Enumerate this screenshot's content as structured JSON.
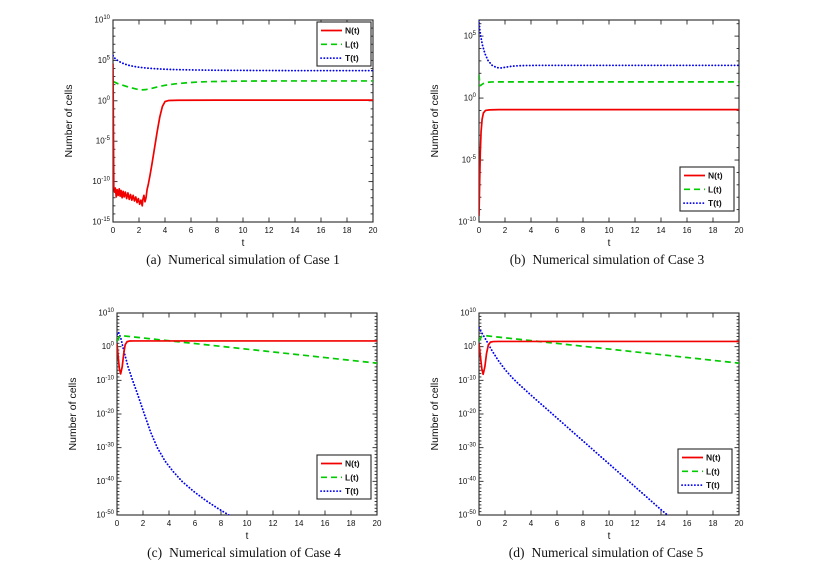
{
  "page": {
    "background": "#ffffff"
  },
  "colors": {
    "series_N": "#f20000",
    "series_L": "#00cc00",
    "series_T": "#0000f2",
    "axis": "#262626",
    "text": "#111111"
  },
  "chart_data": [
    {
      "id": "a",
      "type": "line",
      "caption_label": "(a)",
      "caption_text": "Numerical simulation of Case 1",
      "xlabel": "t",
      "ylabel": "Number of cells",
      "xlim": [
        0,
        20
      ],
      "xticks": [
        0,
        2,
        4,
        6,
        8,
        10,
        12,
        14,
        16,
        18,
        20
      ],
      "ylim_exp": [
        -15,
        10
      ],
      "yticks_exp": [
        10,
        5,
        0,
        -5,
        -10,
        -15
      ],
      "grid": false,
      "legend_pos": {
        "x": 261,
        "y": 12,
        "location": "top-right"
      },
      "series": [
        {
          "name": "T(t)",
          "style": "dotted",
          "color": "#0000f2",
          "log10_points": [
            [
              0,
              5.6
            ],
            [
              0.15,
              5.25
            ],
            [
              0.35,
              5.0
            ],
            [
              0.6,
              4.75
            ],
            [
              0.9,
              4.55
            ],
            [
              1.3,
              4.35
            ],
            [
              1.8,
              4.2
            ],
            [
              2.4,
              4.08
            ],
            [
              3.0,
              4.0
            ],
            [
              3.8,
              3.92
            ],
            [
              4.8,
              3.86
            ],
            [
              6,
              3.82
            ],
            [
              8,
              3.78
            ],
            [
              10,
              3.76
            ],
            [
              13,
              3.74
            ],
            [
              16,
              3.73
            ],
            [
              20,
              3.73
            ]
          ]
        },
        {
          "name": "L(t)",
          "style": "dashed",
          "color": "#00cc00",
          "log10_points": [
            [
              0,
              2.4
            ],
            [
              0.4,
              2.1
            ],
            [
              0.8,
              1.9
            ],
            [
              1.3,
              1.65
            ],
            [
              1.8,
              1.45
            ],
            [
              2.2,
              1.35
            ],
            [
              2.5,
              1.38
            ],
            [
              3.0,
              1.55
            ],
            [
              3.5,
              1.75
            ],
            [
              4.0,
              1.92
            ],
            [
              4.8,
              2.1
            ],
            [
              5.6,
              2.22
            ],
            [
              6.5,
              2.32
            ],
            [
              7.5,
              2.38
            ],
            [
              9,
              2.42
            ],
            [
              11,
              2.45
            ],
            [
              14,
              2.46
            ],
            [
              17,
              2.46
            ],
            [
              20,
              2.46
            ]
          ]
        },
        {
          "name": "N(t)",
          "style": "solid",
          "color": "#f20000",
          "log10_points": [
            [
              0,
              4.6
            ],
            [
              0.03,
              -3
            ],
            [
              0.06,
              -10.6
            ],
            [
              0.12,
              -11.3
            ],
            [
              0.18,
              -10.8
            ],
            [
              0.25,
              -11.9
            ],
            [
              0.32,
              -11.0
            ],
            [
              0.4,
              -11.7
            ],
            [
              0.48,
              -10.9
            ],
            [
              0.55,
              -11.8
            ],
            [
              0.62,
              -11.1
            ],
            [
              0.7,
              -12.0
            ],
            [
              0.78,
              -11.2
            ],
            [
              0.86,
              -11.9
            ],
            [
              0.95,
              -11.3
            ],
            [
              1.05,
              -12.1
            ],
            [
              1.15,
              -11.4
            ],
            [
              1.25,
              -12.2
            ],
            [
              1.35,
              -11.6
            ],
            [
              1.45,
              -12.3
            ],
            [
              1.55,
              -11.7
            ],
            [
              1.65,
              -12.4
            ],
            [
              1.75,
              -11.9
            ],
            [
              1.85,
              -12.6
            ],
            [
              1.95,
              -12.1
            ],
            [
              2.05,
              -12.8
            ],
            [
              2.15,
              -12.3
            ],
            [
              2.25,
              -13.0
            ],
            [
              2.3,
              -12.2
            ],
            [
              2.38,
              -11.7
            ],
            [
              2.46,
              -12.5
            ],
            [
              2.54,
              -12.0
            ],
            [
              2.62,
              -11.0
            ],
            [
              2.72,
              -10.3
            ],
            [
              2.85,
              -9.2
            ],
            [
              3.0,
              -7.8
            ],
            [
              3.2,
              -5.8
            ],
            [
              3.4,
              -3.8
            ],
            [
              3.6,
              -2.0
            ],
            [
              3.8,
              -0.7
            ],
            [
              4.0,
              -0.1
            ],
            [
              4.3,
              0.04
            ],
            [
              5,
              0.07
            ],
            [
              8,
              0.08
            ],
            [
              12,
              0.08
            ],
            [
              16,
              0.08
            ],
            [
              20,
              0.08
            ]
          ]
        }
      ],
      "legend_order": [
        "N(t)",
        "L(t)",
        "T(t)"
      ]
    },
    {
      "id": "b",
      "type": "line",
      "caption_label": "(b)",
      "caption_text": "Numerical simulation of Case 3",
      "xlabel": "t",
      "ylabel": "Number of cells",
      "xlim": [
        0,
        20
      ],
      "xticks": [
        0,
        2,
        4,
        6,
        8,
        10,
        12,
        14,
        16,
        18,
        20
      ],
      "ylim_exp": [
        -10,
        6.3
      ],
      "yticks_exp": [
        5,
        0,
        -5,
        -10
      ],
      "grid": false,
      "legend_pos": {
        "x": 258,
        "y": 157,
        "location": "bottom-right"
      },
      "series": [
        {
          "name": "T(t)",
          "style": "dotted",
          "color": "#0000f2",
          "log10_points": [
            [
              0,
              6.3
            ],
            [
              0.06,
              5.55
            ],
            [
              0.14,
              4.95
            ],
            [
              0.26,
              4.3
            ],
            [
              0.45,
              3.6
            ],
            [
              0.7,
              3.02
            ],
            [
              1.0,
              2.65
            ],
            [
              1.35,
              2.46
            ],
            [
              1.7,
              2.43
            ],
            [
              2.1,
              2.5
            ],
            [
              2.6,
              2.58
            ],
            [
              3.3,
              2.62
            ],
            [
              4.5,
              2.64
            ],
            [
              20,
              2.64
            ]
          ]
        },
        {
          "name": "L(t)",
          "style": "dashed",
          "color": "#00cc00",
          "log10_points": [
            [
              0,
              1.9
            ],
            [
              0.07,
              1.0
            ],
            [
              0.18,
              1.07
            ],
            [
              0.35,
              1.18
            ],
            [
              0.6,
              1.27
            ],
            [
              1.0,
              1.3
            ],
            [
              2,
              1.31
            ],
            [
              20,
              1.31
            ]
          ]
        },
        {
          "name": "N(t)",
          "style": "solid",
          "color": "#f20000",
          "log10_points": [
            [
              0,
              -9.5
            ],
            [
              0.05,
              -6.8
            ],
            [
              0.1,
              -4.4
            ],
            [
              0.16,
              -2.7
            ],
            [
              0.24,
              -1.7
            ],
            [
              0.34,
              -1.2
            ],
            [
              0.5,
              -1.0
            ],
            [
              0.8,
              -0.95
            ],
            [
              1.5,
              -0.93
            ],
            [
              20,
              -0.93
            ]
          ]
        }
      ],
      "legend_order": [
        "N(t)",
        "L(t)",
        "T(t)"
      ]
    },
    {
      "id": "c",
      "type": "line",
      "caption_label": "(c)",
      "caption_text": "Numerical simulation of Case 4",
      "xlabel": "t",
      "ylabel": "Number of cells",
      "xlim": [
        0,
        20
      ],
      "xticks": [
        0,
        2,
        4,
        6,
        8,
        10,
        12,
        14,
        16,
        18,
        20
      ],
      "ylim_exp": [
        -50,
        10
      ],
      "yticks_exp": [
        10,
        0,
        -10,
        -20,
        -30,
        -40,
        -50
      ],
      "grid": false,
      "legend_pos": {
        "x": 257,
        "y": 152,
        "location": "right-lower"
      },
      "series": [
        {
          "name": "T(t)",
          "style": "dotted",
          "color": "#0000f2",
          "log10_points": [
            [
              0,
              3.6
            ],
            [
              0.12,
              4.25
            ],
            [
              0.3,
              2.4
            ],
            [
              0.55,
              -1.6
            ],
            [
              0.85,
              -6.0
            ],
            [
              1.2,
              -10
            ],
            [
              1.6,
              -14.3
            ],
            [
              2.1,
              -20
            ],
            [
              2.6,
              -25.5
            ],
            [
              3.1,
              -30
            ],
            [
              3.7,
              -34
            ],
            [
              4.3,
              -37
            ],
            [
              5.0,
              -40
            ],
            [
              5.9,
              -43
            ],
            [
              6.8,
              -45.6
            ],
            [
              7.7,
              -47.9
            ],
            [
              8.6,
              -50
            ]
          ]
        },
        {
          "name": "L(t)",
          "style": "dashed",
          "color": "#00cc00",
          "log10_points": [
            [
              0,
              1.6
            ],
            [
              0.2,
              3.0
            ],
            [
              0.4,
              3.25
            ],
            [
              2,
              2.58
            ],
            [
              4,
              1.75
            ],
            [
              6,
              0.92
            ],
            [
              8,
              0.09
            ],
            [
              10,
              -0.74
            ],
            [
              12,
              -1.57
            ],
            [
              14,
              -2.4
            ],
            [
              16,
              -3.24
            ],
            [
              18,
              -4.07
            ],
            [
              20,
              -4.9
            ]
          ]
        },
        {
          "name": "N(t)",
          "style": "solid",
          "color": "#f20000",
          "log10_points": [
            [
              0,
              0.9
            ],
            [
              0.08,
              -2.5
            ],
            [
              0.18,
              -6.5
            ],
            [
              0.28,
              -8.1
            ],
            [
              0.4,
              -6.0
            ],
            [
              0.52,
              -2.0
            ],
            [
              0.63,
              0.6
            ],
            [
              0.78,
              1.5
            ],
            [
              0.95,
              1.68
            ],
            [
              1.3,
              1.7
            ],
            [
              20,
              1.7
            ]
          ]
        }
      ],
      "legend_order": [
        "N(t)",
        "L(t)",
        "T(t)"
      ]
    },
    {
      "id": "d",
      "type": "line",
      "caption_label": "(d)",
      "caption_text": "Numerical simulation of Case 5",
      "xlabel": "t",
      "ylabel": "Number of cells",
      "xlim": [
        0,
        20
      ],
      "xticks": [
        0,
        2,
        4,
        6,
        8,
        10,
        12,
        14,
        16,
        18,
        20
      ],
      "ylim_exp": [
        -50,
        10
      ],
      "yticks_exp": [
        10,
        0,
        -10,
        -20,
        -30,
        -40,
        -50
      ],
      "grid": false,
      "legend_pos": {
        "x": 256,
        "y": 146,
        "location": "right-lower"
      },
      "series": [
        {
          "name": "T(t)",
          "style": "dotted",
          "color": "#0000f2",
          "log10_points": [
            [
              0,
              5.6
            ],
            [
              0.2,
              4.2
            ],
            [
              0.45,
              2.6
            ],
            [
              0.7,
              0.9
            ],
            [
              1.0,
              -1.2
            ],
            [
              1.5,
              -4.2
            ],
            [
              2.0,
              -6.8
            ],
            [
              2.6,
              -9.4
            ],
            [
              3.2,
              -11.6
            ],
            [
              4.0,
              -14.4
            ],
            [
              5.0,
              -17.8
            ],
            [
              6.0,
              -21.2
            ],
            [
              7.0,
              -24.6
            ],
            [
              8.0,
              -28.0
            ],
            [
              9.0,
              -31.4
            ],
            [
              10.0,
              -34.8
            ],
            [
              11.0,
              -38.2
            ],
            [
              12.0,
              -41.6
            ],
            [
              13.0,
              -45.0
            ],
            [
              14.0,
              -48.4
            ],
            [
              14.5,
              -50
            ]
          ]
        },
        {
          "name": "L(t)",
          "style": "dashed",
          "color": "#00cc00",
          "log10_points": [
            [
              0,
              1.7
            ],
            [
              0.2,
              3.05
            ],
            [
              0.4,
              3.3
            ],
            [
              2,
              2.63
            ],
            [
              4,
              1.8
            ],
            [
              6,
              0.96
            ],
            [
              8,
              0.12
            ],
            [
              10,
              -0.71
            ],
            [
              12,
              -1.55
            ],
            [
              14,
              -2.38
            ],
            [
              16,
              -3.22
            ],
            [
              18,
              -4.06
            ],
            [
              20,
              -4.9
            ]
          ]
        },
        {
          "name": "N(t)",
          "style": "solid",
          "color": "#f20000",
          "log10_points": [
            [
              0,
              0.9
            ],
            [
              0.1,
              -2.6
            ],
            [
              0.22,
              -6.6
            ],
            [
              0.32,
              -8.2
            ],
            [
              0.45,
              -6.0
            ],
            [
              0.58,
              -2.0
            ],
            [
              0.72,
              0.5
            ],
            [
              0.88,
              1.35
            ],
            [
              1.1,
              1.52
            ],
            [
              1.5,
              1.55
            ],
            [
              20,
              1.55
            ]
          ]
        }
      ],
      "legend_order": [
        "N(t)",
        "L(t)",
        "T(t)"
      ]
    }
  ]
}
